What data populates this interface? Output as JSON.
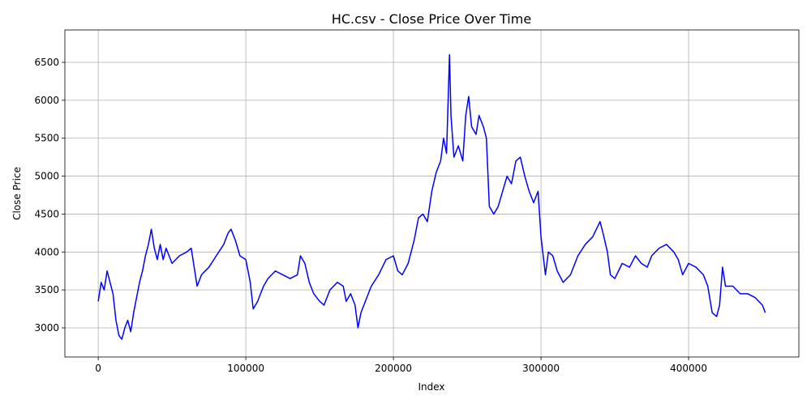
{
  "chart_data": {
    "type": "line",
    "title": "HC.csv - Close Price Over Time",
    "xlabel": "Index",
    "ylabel": "Close Price",
    "x": [
      0,
      2000,
      4000,
      6000,
      8000,
      10000,
      12000,
      14000,
      16000,
      18000,
      20000,
      22000,
      24000,
      26000,
      28000,
      30000,
      32000,
      34000,
      36000,
      38000,
      40000,
      42000,
      44000,
      46000,
      48000,
      50000,
      55000,
      60000,
      63000,
      65000,
      67000,
      70000,
      75000,
      80000,
      85000,
      88000,
      90000,
      93000,
      96000,
      100000,
      103000,
      105000,
      108000,
      112000,
      115000,
      120000,
      125000,
      130000,
      135000,
      137000,
      140000,
      143000,
      146000,
      150000,
      153000,
      157000,
      162000,
      166000,
      168000,
      171000,
      174000,
      176000,
      178000,
      181000,
      185000,
      190000,
      195000,
      200000,
      203000,
      206000,
      210000,
      214000,
      217000,
      220000,
      223000,
      226000,
      229000,
      232000,
      234000,
      236000,
      238000,
      239000,
      241000,
      244000,
      247000,
      249000,
      251000,
      253000,
      256000,
      258000,
      261000,
      263000,
      265000,
      268000,
      271000,
      274000,
      277000,
      280000,
      283000,
      286000,
      289000,
      292000,
      295000,
      298000,
      300000,
      303000,
      305000,
      308000,
      311000,
      315000,
      320000,
      325000,
      330000,
      335000,
      340000,
      342000,
      345000,
      347000,
      350000,
      355000,
      360000,
      364000,
      368000,
      372000,
      375000,
      380000,
      385000,
      390000,
      393000,
      396000,
      400000,
      405000,
      410000,
      413000,
      416000,
      419000,
      421000,
      423000,
      425000,
      430000,
      435000,
      440000,
      445000,
      450000,
      452000
    ],
    "series": [
      {
        "name": "Close",
        "color": "blue",
        "values": [
          3350,
          3600,
          3500,
          3750,
          3600,
          3450,
          3100,
          2900,
          2850,
          3000,
          3100,
          2950,
          3200,
          3400,
          3600,
          3750,
          3950,
          4100,
          4300,
          4050,
          3900,
          4100,
          3900,
          4050,
          3950,
          3850,
          3950,
          4000,
          4050,
          3800,
          3550,
          3700,
          3800,
          3950,
          4100,
          4250,
          4300,
          4150,
          3950,
          3900,
          3600,
          3250,
          3350,
          3550,
          3650,
          3750,
          3700,
          3650,
          3700,
          3950,
          3850,
          3600,
          3450,
          3350,
          3300,
          3500,
          3600,
          3550,
          3350,
          3450,
          3300,
          3000,
          3200,
          3350,
          3550,
          3700,
          3900,
          3950,
          3750,
          3700,
          3850,
          4150,
          4450,
          4500,
          4400,
          4800,
          5050,
          5200,
          5500,
          5300,
          6600,
          5800,
          5250,
          5400,
          5200,
          5800,
          6050,
          5650,
          5550,
          5800,
          5650,
          5500,
          4600,
          4500,
          4600,
          4800,
          5000,
          4900,
          5200,
          5250,
          5000,
          4800,
          4650,
          4800,
          4200,
          3700,
          4000,
          3950,
          3750,
          3600,
          3700,
          3950,
          4100,
          4200,
          4400,
          4250,
          4000,
          3700,
          3650,
          3850,
          3800,
          3950,
          3850,
          3800,
          3950,
          4050,
          4100,
          4000,
          3900,
          3700,
          3850,
          3800,
          3700,
          3550,
          3200,
          3150,
          3300,
          3800,
          3550,
          3550,
          3450,
          3450,
          3400,
          3300,
          3200
        ]
      }
    ],
    "xlim": [
      -22600,
      474700
    ],
    "ylim": [
      2616,
      6927
    ],
    "xticks": [
      0,
      100000,
      200000,
      300000,
      400000
    ],
    "yticks": [
      3000,
      3500,
      4000,
      4500,
      5000,
      5500,
      6000,
      6500
    ],
    "grid": true
  }
}
